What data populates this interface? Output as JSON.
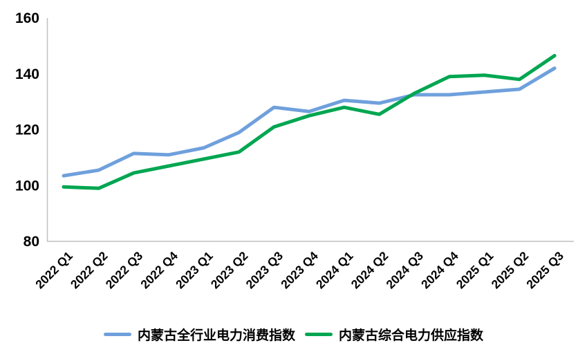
{
  "chart_data": {
    "type": "line",
    "title": "",
    "xlabel": "",
    "ylabel": "",
    "categories": [
      "2022 Q1",
      "2022 Q2",
      "2022 Q3",
      "2022 Q4",
      "2023 Q1",
      "2023 Q2",
      "2023 Q3",
      "2023 Q4",
      "2024 Q1",
      "2024 Q2",
      "2024 Q3",
      "2024 Q4",
      "2025 Q1",
      "2025 Q2",
      "2025 Q3"
    ],
    "series": [
      {
        "name": "内蒙古全行业电力消费指数",
        "color": "#6FA0DC",
        "values": [
          103.5,
          105.5,
          111.5,
          111,
          113.5,
          119,
          128,
          126.5,
          130.5,
          129.5,
          132.5,
          132.5,
          133.5,
          134.5,
          142
        ]
      },
      {
        "name": "内蒙古综合电力供应指数",
        "color": "#00A651",
        "values": [
          99.5,
          99,
          104.5,
          107,
          109.5,
          112,
          121,
          125,
          128,
          125.5,
          133,
          139,
          139.5,
          138,
          146.5
        ]
      }
    ],
    "ylim": [
      80,
      160
    ],
    "yticks": [
      80,
      100,
      120,
      140,
      160
    ],
    "grid": false,
    "legend_position": "bottom",
    "axis_color": "#BFBFBF",
    "tick_label_color": "#000000"
  }
}
